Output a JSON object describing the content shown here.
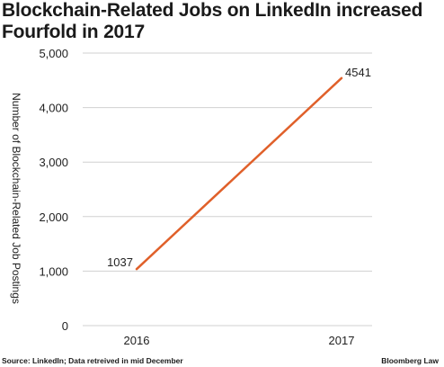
{
  "chart_data": {
    "type": "line",
    "title": "Blockchain-Related Jobs on LinkedIn increased Fourfold in 2017",
    "xlabel": "",
    "ylabel": "Number of Blockchain-Related Job Postings",
    "categories": [
      "2016",
      "2017"
    ],
    "series": [
      {
        "values": [
          1037,
          4541
        ],
        "color": "#e0602a"
      }
    ],
    "data_labels": [
      "1037",
      "4541"
    ],
    "ylim": [
      0,
      5000
    ],
    "yticks": [
      0,
      1000,
      2000,
      3000,
      4000,
      5000
    ],
    "ytick_labels": [
      "0",
      "1,000",
      "2,000",
      "3,000",
      "4,000",
      "5,000"
    ],
    "grid": true,
    "legend": "none"
  },
  "source": "Source: LinkedIn; Data retreived in mid December",
  "brand": "Bloomberg Law",
  "colors": {
    "line": "#e0602a",
    "grid": "#d0d0d0",
    "text": "#222222"
  }
}
